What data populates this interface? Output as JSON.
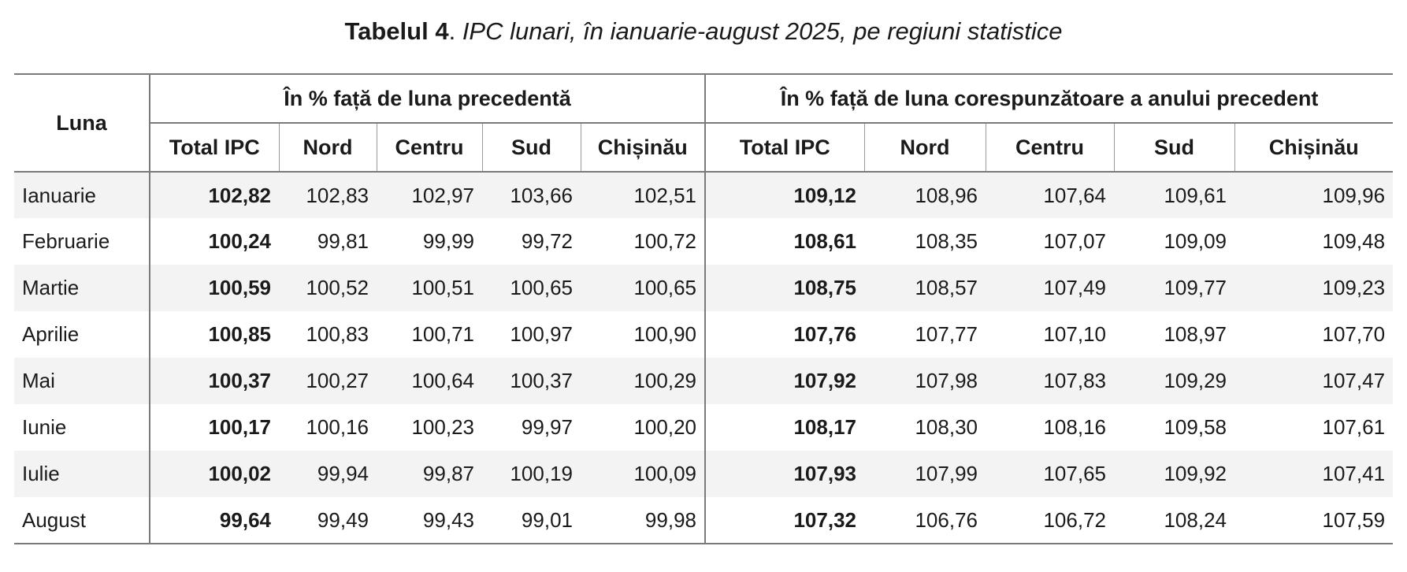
{
  "title": {
    "prefix": "Tabelul 4",
    "separator": ".",
    "text": " IPC lunari, în ianuarie-august 2025, pe regiuni statistice"
  },
  "table": {
    "month_header": "Luna",
    "group_previous_month": "În % față de luna precedentă",
    "group_previous_year": "În % față de luna corespunzătoare a anului precedent",
    "columns": [
      "Total IPC",
      "Nord",
      "Centru",
      "Sud",
      "Chișinău"
    ],
    "rows": [
      {
        "month": "Ianuarie",
        "prev_month": [
          "102,82",
          "102,83",
          "102,97",
          "103,66",
          "102,51"
        ],
        "prev_year": [
          "109,12",
          "108,96",
          "107,64",
          "109,61",
          "109,96"
        ]
      },
      {
        "month": "Februarie",
        "prev_month": [
          "100,24",
          "99,81",
          "99,99",
          "99,72",
          "100,72"
        ],
        "prev_year": [
          "108,61",
          "108,35",
          "107,07",
          "109,09",
          "109,48"
        ]
      },
      {
        "month": "Martie",
        "prev_month": [
          "100,59",
          "100,52",
          "100,51",
          "100,65",
          "100,65"
        ],
        "prev_year": [
          "108,75",
          "108,57",
          "107,49",
          "109,77",
          "109,23"
        ]
      },
      {
        "month": "Aprilie",
        "prev_month": [
          "100,85",
          "100,83",
          "100,71",
          "100,97",
          "100,90"
        ],
        "prev_year": [
          "107,76",
          "107,77",
          "107,10",
          "108,97",
          "107,70"
        ]
      },
      {
        "month": "Mai",
        "prev_month": [
          "100,37",
          "100,27",
          "100,64",
          "100,37",
          "100,29"
        ],
        "prev_year": [
          "107,92",
          "107,98",
          "107,83",
          "109,29",
          "107,47"
        ]
      },
      {
        "month": "Iunie",
        "prev_month": [
          "100,17",
          "100,16",
          "100,23",
          "99,97",
          "100,20"
        ],
        "prev_year": [
          "108,17",
          "108,30",
          "108,16",
          "109,58",
          "107,61"
        ]
      },
      {
        "month": "Iulie",
        "prev_month": [
          "100,02",
          "99,94",
          "99,87",
          "100,19",
          "100,09"
        ],
        "prev_year": [
          "107,93",
          "107,99",
          "107,65",
          "109,92",
          "107,41"
        ]
      },
      {
        "month": "August",
        "prev_month": [
          "99,64",
          "99,49",
          "99,43",
          "99,01",
          "99,98"
        ],
        "prev_year": [
          "107,32",
          "106,76",
          "106,72",
          "108,24",
          "107,59"
        ]
      }
    ]
  },
  "colors": {
    "text": "#1a1a1a",
    "rule": "#7a7a7a",
    "stripe": "#f3f3f3",
    "background": "#ffffff"
  }
}
